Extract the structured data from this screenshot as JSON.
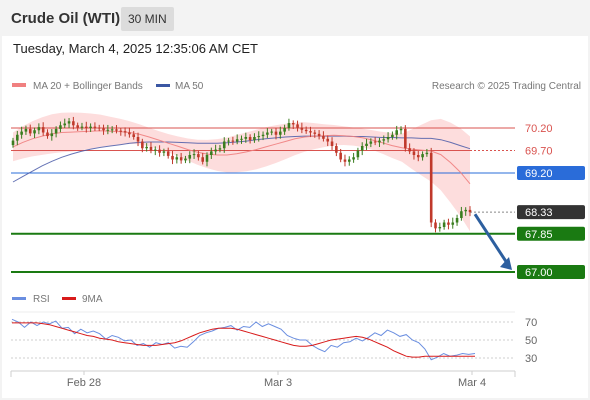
{
  "header": {
    "title": "Crude Oil (WTI)",
    "timeframe": "30 MIN",
    "datetime": "Tuesday, March 4, 2025 12:35:06 AM CET"
  },
  "legend": {
    "ma20_label": "MA 20 + Bollinger Bands",
    "ma50_label": "MA 50",
    "copyright": "Research © 2025 Trading Central",
    "rsi_label": "RSI",
    "ma9_label": "9MA"
  },
  "colors": {
    "candle_up": "#3a7d1f",
    "candle_down": "#c0392b",
    "bollinger_fill": "#fdd9d9",
    "ma20": "#f08080",
    "ma50": "#4a5aa8",
    "resistance": "#d9534f",
    "pivot": "#2a6cd9",
    "support": "#1a7a12",
    "last_price": "#333333",
    "arrow": "#2d5f9f",
    "rsi": "#6a8ee0",
    "rsi_ma": "#d81b1b"
  },
  "chart_data": [
    {
      "type": "candlestick",
      "instrument": "Crude Oil (WTI)",
      "interval": "30 MIN",
      "ylim": [
        66.8,
        70.6
      ],
      "x_tick_labels": [
        "Feb 28",
        "Mar 3",
        "Mar 4"
      ],
      "levels": [
        {
          "value": 70.2,
          "label": "70.20",
          "kind": "resistance"
        },
        {
          "value": 69.7,
          "label": "69.70",
          "kind": "resistance"
        },
        {
          "value": 69.2,
          "label": "69.20",
          "kind": "pivot"
        },
        {
          "value": 67.85,
          "label": "67.85",
          "kind": "support"
        },
        {
          "value": 67.0,
          "label": "67.00",
          "kind": "support"
        }
      ],
      "last_price": {
        "value": 68.33,
        "label": "68.33"
      },
      "forecast_target": 67.0,
      "close": [
        69.92,
        70.05,
        70.12,
        70.18,
        70.08,
        70.15,
        70.22,
        70.1,
        70.02,
        70.08,
        70.18,
        70.26,
        70.3,
        70.35,
        70.26,
        70.21,
        70.23,
        70.2,
        70.23,
        70.21,
        70.19,
        70.15,
        70.16,
        70.17,
        70.14,
        70.13,
        70.1,
        70.06,
        70.0,
        69.9,
        69.75,
        69.78,
        69.7,
        69.72,
        69.65,
        69.68,
        69.58,
        69.5,
        69.55,
        69.48,
        69.52,
        69.6,
        69.62,
        69.55,
        69.45,
        69.6,
        69.68,
        69.72,
        69.75,
        69.9,
        69.92,
        69.9,
        69.95,
        69.96,
        70.0,
        69.93,
        70.0,
        70.02,
        70.05,
        70.1,
        70.12,
        70.05,
        70.12,
        70.2,
        70.31,
        70.28,
        70.21,
        70.16,
        70.13,
        70.1,
        70.07,
        70.02,
        69.96,
        69.9,
        69.8,
        69.65,
        69.5,
        69.45,
        69.5,
        69.55,
        69.7,
        69.8,
        69.85,
        69.9,
        69.88,
        69.92,
        69.95,
        70.0,
        70.05,
        70.15,
        70.18,
        69.75,
        69.68,
        69.6,
        69.55,
        69.62,
        69.65,
        68.1,
        67.97,
        68.0,
        68.1,
        68.05,
        68.1,
        68.2,
        68.35,
        68.38,
        68.33
      ],
      "ma20": [
        69.78,
        69.88,
        69.96,
        70.02,
        70.07,
        70.1,
        70.11,
        70.12,
        70.13,
        70.14,
        70.13,
        70.12,
        70.1,
        70.06,
        70.0,
        69.93,
        69.86,
        69.79,
        69.72,
        69.66,
        69.62,
        69.6,
        69.6,
        69.63,
        69.67,
        69.72,
        69.78,
        69.84,
        69.9,
        69.96,
        70.0,
        70.02,
        70.03,
        70.04,
        70.03,
        70.01,
        69.98,
        69.93,
        69.87,
        69.81,
        69.76,
        69.73,
        69.71,
        69.69,
        69.61,
        69.43,
        69.22,
        68.96
      ],
      "ma50": [
        69.0,
        69.12,
        69.24,
        69.36,
        69.46,
        69.55,
        69.62,
        69.68,
        69.73,
        69.77,
        69.8,
        69.83,
        69.86,
        69.88,
        69.89,
        69.89,
        69.89,
        69.88,
        69.87,
        69.86,
        69.86,
        69.86,
        69.87,
        69.89,
        69.91,
        69.94,
        69.96,
        69.98,
        70.0,
        70.01,
        70.02,
        70.02,
        70.02,
        70.02,
        70.02,
        70.01,
        70.01,
        70.0,
        69.99,
        69.99,
        69.98,
        69.98,
        69.97,
        69.97,
        69.94,
        69.88,
        69.81,
        69.74
      ]
    },
    {
      "type": "line",
      "title": "RSI",
      "series_names": [
        "RSI",
        "9MA"
      ],
      "y_tick_labels": [
        "70",
        "50",
        "30"
      ],
      "ylim": [
        15,
        80
      ],
      "rsi": [
        73,
        70,
        64,
        70,
        66,
        70,
        68,
        71,
        63,
        64,
        57,
        62,
        58,
        60,
        57,
        51,
        55,
        53,
        49,
        50,
        44,
        46,
        42,
        47,
        45,
        47,
        41,
        43,
        42,
        48,
        55,
        58,
        60,
        63,
        64,
        66,
        61,
        65,
        64,
        70,
        65,
        68,
        65,
        62,
        55,
        52,
        50,
        50,
        44,
        40,
        37,
        44,
        42,
        47,
        48,
        52,
        49,
        53,
        58,
        55,
        61,
        58,
        54,
        56,
        50,
        47,
        40,
        28,
        31,
        35,
        32,
        33,
        35,
        34,
        35
      ],
      "rsi_ma": [
        69,
        69,
        69,
        69,
        69,
        68,
        67,
        65,
        63,
        61,
        59,
        57,
        55,
        54,
        52,
        51,
        50,
        48,
        47,
        46,
        45,
        44,
        44,
        44,
        45,
        46,
        47,
        49,
        52,
        55,
        58,
        60,
        62,
        63,
        63,
        63,
        62,
        60,
        58,
        56,
        54,
        52,
        50,
        48,
        46,
        44,
        43,
        43,
        44,
        46,
        48,
        50,
        51,
        52,
        53,
        54,
        53,
        51,
        48,
        45,
        42,
        38,
        35,
        32,
        31,
        31,
        32,
        32,
        32,
        32,
        32,
        32,
        32,
        32,
        32
      ]
    }
  ]
}
